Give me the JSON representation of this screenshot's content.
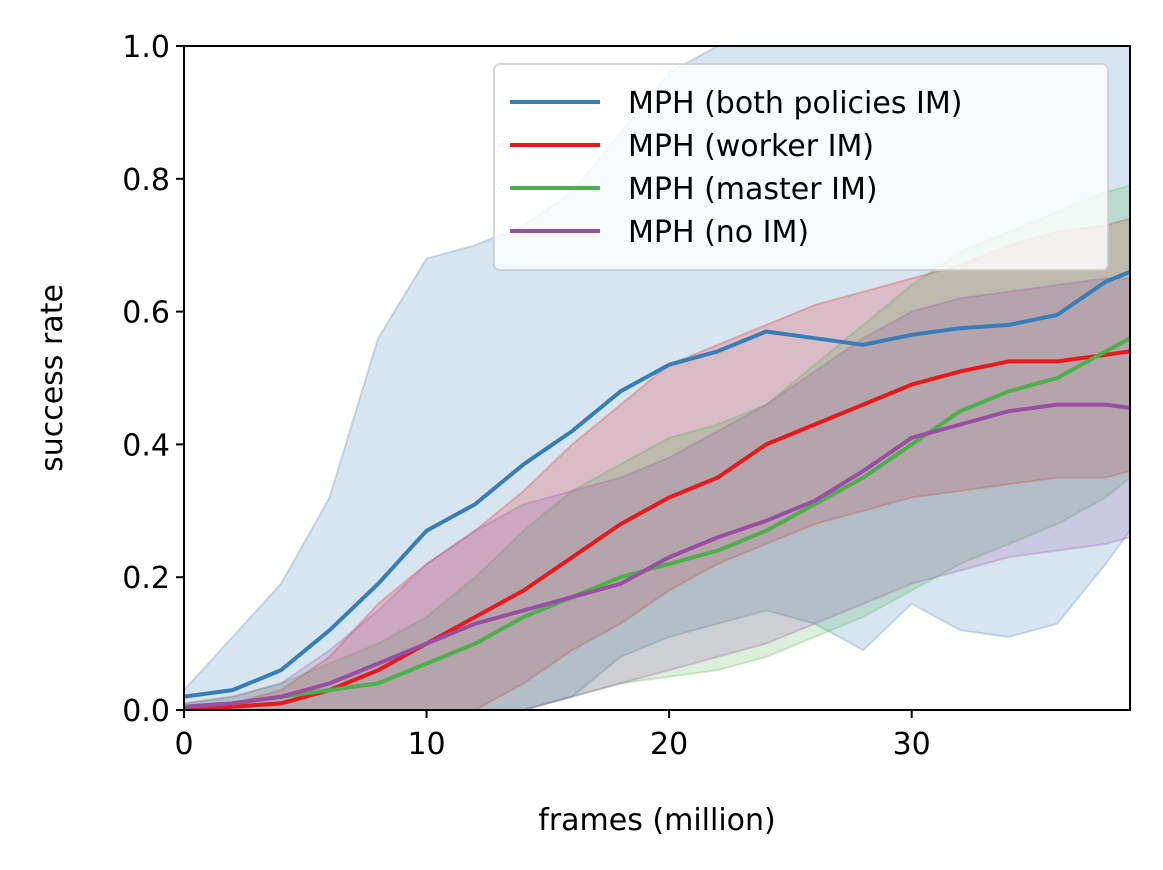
{
  "chart_data": {
    "type": "line",
    "xlabel": "frames (million)",
    "ylabel": "success rate",
    "xlim": [
      0,
      39
    ],
    "ylim": [
      0,
      1
    ],
    "xticks": [
      0,
      10,
      20,
      30
    ],
    "xtick_labels": [
      "0",
      "10",
      "20",
      "30"
    ],
    "yticks": [
      0,
      0.2,
      0.4,
      0.6,
      0.8,
      1.0
    ],
    "ytick_labels": [
      "0.0",
      "0.2",
      "0.4",
      "0.6",
      "0.8",
      "1.0"
    ],
    "legend_position": "top-right",
    "grid": false,
    "x": [
      0,
      2,
      4,
      6,
      8,
      10,
      12,
      14,
      16,
      18,
      20,
      22,
      24,
      26,
      28,
      30,
      32,
      34,
      36,
      38,
      39
    ],
    "series": [
      {
        "name": "MPH (both policies IM)",
        "color": "#377eb8",
        "values": [
          0.02,
          0.03,
          0.06,
          0.12,
          0.19,
          0.27,
          0.31,
          0.37,
          0.42,
          0.48,
          0.52,
          0.54,
          0.57,
          0.56,
          0.55,
          0.565,
          0.575,
          0.58,
          0.595,
          0.645,
          0.66
        ],
        "lower": [
          0.0,
          0.0,
          0.0,
          0.0,
          0.0,
          0.0,
          0.0,
          0.0,
          0.02,
          0.08,
          0.11,
          0.13,
          0.15,
          0.13,
          0.09,
          0.16,
          0.12,
          0.11,
          0.13,
          0.22,
          0.27
        ],
        "upper": [
          0.03,
          0.11,
          0.19,
          0.32,
          0.56,
          0.68,
          0.7,
          0.73,
          0.78,
          0.87,
          0.96,
          1.0,
          1.0,
          1.0,
          1.0,
          1.0,
          1.0,
          1.0,
          1.0,
          1.0,
          1.0
        ]
      },
      {
        "name": "MPH (worker IM)",
        "color": "#e41a1c",
        "values": [
          0.0,
          0.005,
          0.01,
          0.03,
          0.06,
          0.1,
          0.14,
          0.18,
          0.23,
          0.28,
          0.32,
          0.35,
          0.4,
          0.43,
          0.46,
          0.49,
          0.51,
          0.525,
          0.525,
          0.535,
          0.54
        ],
        "lower": [
          0.0,
          0.0,
          0.0,
          0.0,
          0.0,
          0.0,
          0.0,
          0.04,
          0.09,
          0.13,
          0.18,
          0.22,
          0.25,
          0.28,
          0.3,
          0.32,
          0.33,
          0.34,
          0.35,
          0.35,
          0.36
        ],
        "upper": [
          0.0,
          0.01,
          0.03,
          0.08,
          0.16,
          0.22,
          0.27,
          0.33,
          0.4,
          0.46,
          0.52,
          0.55,
          0.58,
          0.61,
          0.63,
          0.65,
          0.67,
          0.7,
          0.72,
          0.73,
          0.74
        ]
      },
      {
        "name": "MPH (master IM)",
        "color": "#4daf4a",
        "values": [
          0.005,
          0.01,
          0.02,
          0.03,
          0.04,
          0.07,
          0.1,
          0.14,
          0.17,
          0.2,
          0.22,
          0.24,
          0.27,
          0.31,
          0.35,
          0.4,
          0.45,
          0.48,
          0.5,
          0.54,
          0.56
        ],
        "lower": [
          0.0,
          0.0,
          0.0,
          0.0,
          0.0,
          0.0,
          0.0,
          0.0,
          0.02,
          0.04,
          0.05,
          0.06,
          0.08,
          0.11,
          0.14,
          0.18,
          0.22,
          0.25,
          0.28,
          0.32,
          0.35
        ],
        "upper": [
          0.01,
          0.02,
          0.04,
          0.07,
          0.1,
          0.14,
          0.2,
          0.27,
          0.33,
          0.37,
          0.41,
          0.43,
          0.46,
          0.52,
          0.58,
          0.64,
          0.69,
          0.72,
          0.75,
          0.78,
          0.79
        ]
      },
      {
        "name": "MPH (no IM)",
        "color": "#984ea3",
        "values": [
          0.005,
          0.01,
          0.02,
          0.04,
          0.07,
          0.1,
          0.13,
          0.15,
          0.17,
          0.19,
          0.23,
          0.26,
          0.285,
          0.315,
          0.36,
          0.41,
          0.43,
          0.45,
          0.46,
          0.46,
          0.455
        ],
        "lower": [
          0.0,
          0.0,
          0.0,
          0.0,
          0.0,
          0.0,
          0.0,
          0.0,
          0.02,
          0.04,
          0.06,
          0.08,
          0.1,
          0.13,
          0.16,
          0.19,
          0.21,
          0.23,
          0.24,
          0.25,
          0.26
        ],
        "upper": [
          0.01,
          0.02,
          0.04,
          0.09,
          0.15,
          0.22,
          0.27,
          0.31,
          0.33,
          0.35,
          0.38,
          0.42,
          0.46,
          0.51,
          0.56,
          0.6,
          0.62,
          0.63,
          0.64,
          0.65,
          0.65
        ]
      }
    ]
  }
}
